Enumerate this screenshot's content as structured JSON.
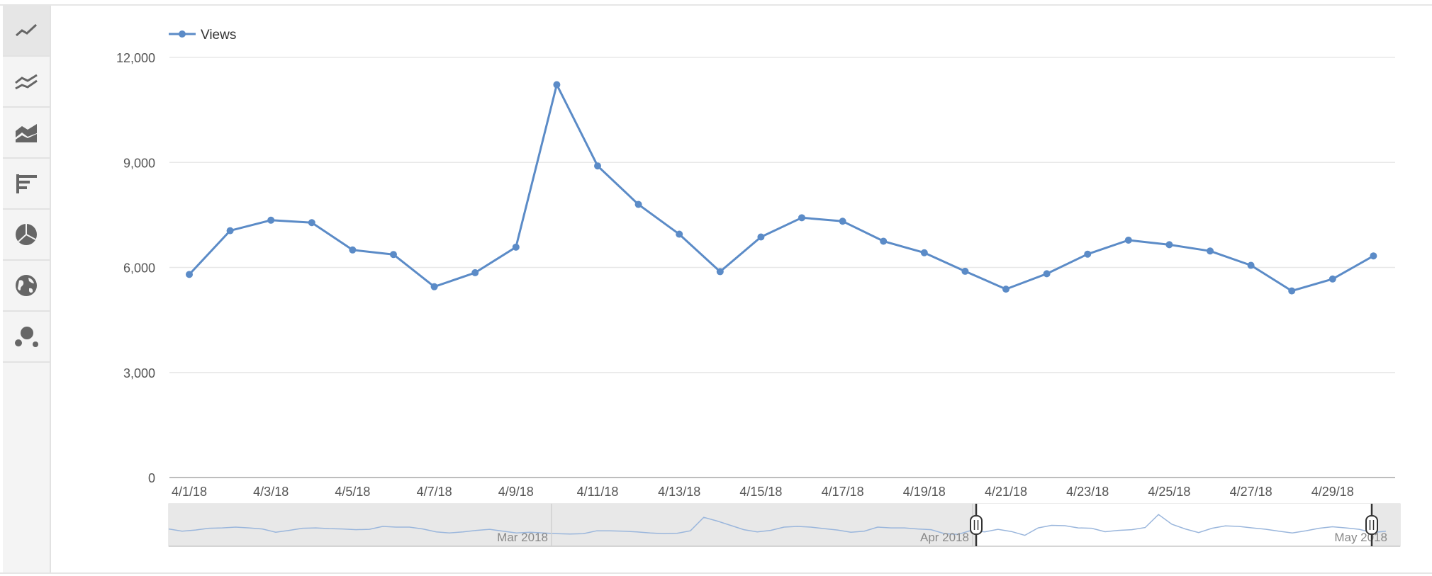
{
  "toolbar": {
    "buttons": [
      {
        "name": "line-chart-button",
        "icon": "line-chart-icon",
        "active": true
      },
      {
        "name": "multi-line-chart-button",
        "icon": "multi-line-chart-icon",
        "active": false
      },
      {
        "name": "area-chart-button",
        "icon": "area-chart-icon",
        "active": false
      },
      {
        "name": "bar-chart-button",
        "icon": "bar-chart-icon",
        "active": false
      },
      {
        "name": "pie-chart-button",
        "icon": "pie-chart-icon",
        "active": false
      },
      {
        "name": "map-chart-button",
        "icon": "globe-icon",
        "active": false
      },
      {
        "name": "bubble-chart-button",
        "icon": "bubble-chart-icon",
        "active": false
      }
    ]
  },
  "colors": {
    "series": "#5b8bc7",
    "grid": "#e8e8e8",
    "axis": "#bdbdbd",
    "nav_bg": "#e8e8e8",
    "icon": "#666666"
  },
  "chart_data": {
    "type": "line",
    "legend": {
      "label": "Views",
      "position": "top-left"
    },
    "y_ticks": [
      "12,000",
      "9,000",
      "6,000",
      "3,000",
      "0"
    ],
    "y_tick_values": [
      12000,
      9000,
      6000,
      3000,
      0
    ],
    "ylim": [
      0,
      12000
    ],
    "grid": true,
    "x_tick_labels": [
      "4/1/18",
      "4/3/18",
      "4/5/18",
      "4/7/18",
      "4/9/18",
      "4/11/18",
      "4/13/18",
      "4/15/18",
      "4/17/18",
      "4/19/18",
      "4/21/18",
      "4/23/18",
      "4/25/18",
      "4/27/18",
      "4/29/18"
    ],
    "x": [
      "4/1/18",
      "4/2/18",
      "4/3/18",
      "4/4/18",
      "4/5/18",
      "4/6/18",
      "4/7/18",
      "4/8/18",
      "4/9/18",
      "4/10/18",
      "4/11/18",
      "4/12/18",
      "4/13/18",
      "4/14/18",
      "4/15/18",
      "4/16/18",
      "4/17/18",
      "4/18/18",
      "4/19/18",
      "4/20/18",
      "4/21/18",
      "4/22/18",
      "4/23/18",
      "4/24/18",
      "4/25/18",
      "4/26/18",
      "4/27/18",
      "4/28/18",
      "4/29/18",
      "4/30/18"
    ],
    "series": [
      {
        "name": "Views",
        "values": [
          5800,
          7050,
          7350,
          7280,
          6500,
          6370,
          5450,
          5850,
          6580,
          11220,
          8900,
          7800,
          6950,
          5880,
          6870,
          7420,
          7320,
          6750,
          6420,
          5890,
          5380,
          5820,
          6380,
          6780,
          6650,
          6470,
          6060,
          5330,
          5670,
          6330
        ]
      }
    ],
    "navigator": {
      "labels": [
        "Mar 2018",
        "Apr 2018",
        "May 2018"
      ],
      "range_start": "4/1/18",
      "range_end": "4/30/18",
      "history_values": [
        6800,
        6500,
        6650,
        6900,
        6950,
        7050,
        6950,
        6800,
        6350,
        6600,
        6900,
        6950,
        6850,
        6800,
        6700,
        6750,
        7150,
        7050,
        7050,
        6800,
        6400,
        6250,
        6400,
        6600,
        6750,
        6500,
        6250,
        6350,
        6250,
        6150,
        6100,
        6150,
        6550,
        6550,
        6500,
        6400,
        6250,
        6150,
        6200,
        6550,
        8400,
        7900,
        7300,
        6700,
        6400,
        6600,
        7050,
        7150,
        7050,
        6850,
        6650,
        6350,
        6500,
        7050,
        6950,
        6950,
        6800,
        6700,
        6150,
        6050,
        6600,
        6400,
        6750,
        6450,
        5920,
        6950,
        7300,
        7250,
        6950,
        6900,
        6420,
        6600,
        6700,
        7000,
        8800,
        7450,
        6800,
        6300,
        6900,
        7220,
        7150,
        6950,
        6760,
        6500,
        6250,
        6550,
        6900,
        7100,
        6950,
        6750,
        6300,
        6500
      ]
    }
  }
}
